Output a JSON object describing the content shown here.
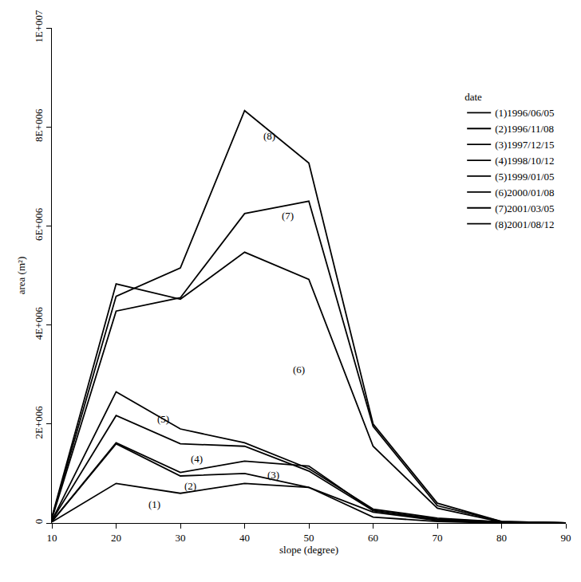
{
  "chart_data": {
    "type": "line",
    "x_label": "slope (degree)",
    "y_label": "area (m²)",
    "x": [
      10,
      20,
      30,
      40,
      50,
      60,
      70,
      80,
      90
    ],
    "series": [
      {
        "name": "(1)1996/06/05",
        "color": "#000000",
        "values": [
          20000,
          800000,
          600000,
          800000,
          720000,
          120000,
          30000,
          0,
          0
        ]
      },
      {
        "name": "(2)1996/11/08",
        "color": "#000000",
        "values": [
          30000,
          1600000,
          950000,
          1000000,
          720000,
          220000,
          50000,
          10000,
          0
        ]
      },
      {
        "name": "(3)1997/12/15",
        "color": "#000000",
        "values": [
          30000,
          1620000,
          1020000,
          1250000,
          1150000,
          250000,
          60000,
          10000,
          0
        ]
      },
      {
        "name": "(4)1998/10/12",
        "color": "#000000",
        "values": [
          50000,
          2170000,
          1600000,
          1550000,
          1050000,
          250000,
          80000,
          20000,
          0
        ]
      },
      {
        "name": "(5)1999/01/05",
        "color": "#000000",
        "values": [
          50000,
          2650000,
          1900000,
          1620000,
          1100000,
          280000,
          100000,
          20000,
          0
        ]
      },
      {
        "name": "(6)2000/01/08",
        "color": "#000000",
        "values": [
          120000,
          4830000,
          4520000,
          5470000,
          4920000,
          1550000,
          300000,
          20000,
          0
        ]
      },
      {
        "name": "(7)2001/03/05",
        "color": "#000000",
        "values": [
          80000,
          4280000,
          4550000,
          6250000,
          6500000,
          1950000,
          350000,
          30000,
          0
        ]
      },
      {
        "name": "(8)2001/08/12",
        "color": "#000000",
        "values": [
          100000,
          4580000,
          5150000,
          8330000,
          7270000,
          2000000,
          400000,
          30000,
          0
        ]
      }
    ],
    "annotations": [
      {
        "text": "(1)",
        "x": 26,
        "y": 380000
      },
      {
        "text": "(2)",
        "x": 31.5,
        "y": 750000
      },
      {
        "text": "(3)",
        "x": 44.5,
        "y": 970000
      },
      {
        "text": "(4)",
        "x": 32.5,
        "y": 1300000
      },
      {
        "text": "(5)",
        "x": 27.3,
        "y": 2100000
      },
      {
        "text": "(6)",
        "x": 48.5,
        "y": 3100000
      },
      {
        "text": "(7)",
        "x": 46.7,
        "y": 6200000
      },
      {
        "text": "(8)",
        "x": 43.9,
        "y": 7820000
      }
    ],
    "xlim": [
      10,
      90
    ],
    "xticks": [
      10,
      20,
      30,
      40,
      50,
      60,
      70,
      80,
      90
    ],
    "ylim": [
      0,
      10000000
    ],
    "yticks": [
      0,
      {
        "value": 2000000,
        "label": "2E+006"
      },
      {
        "value": 4000000,
        "label": "4E+006"
      },
      {
        "value": 6000000,
        "label": "6E+006"
      },
      {
        "value": 8000000,
        "label": "8E+006"
      },
      {
        "value": 10000000,
        "label": "1E+007"
      }
    ],
    "legend": "top right",
    "legend_title": "date",
    "grid": false
  }
}
